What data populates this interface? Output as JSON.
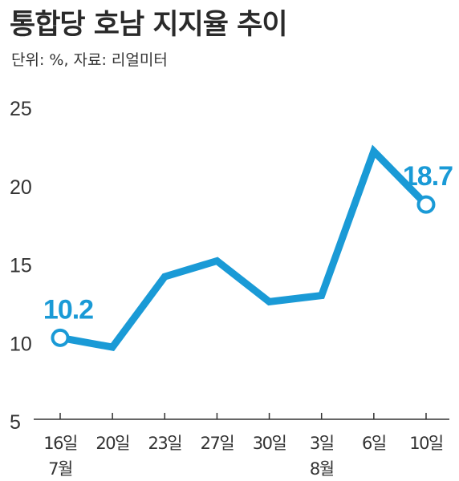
{
  "header": {
    "title": "통합당 호남 지지율 추이",
    "subtitle": "단위: %, 자료: 리얼미터"
  },
  "colors": {
    "line": "#1a9ad6",
    "axis": "#333333",
    "text": "#333333"
  },
  "chart_data": {
    "type": "line",
    "title": "통합당 호남 지지율 추이",
    "subtitle": "단위: %, 자료: 리얼미터",
    "categories": [
      "16일",
      "20일",
      "23일",
      "27일",
      "30일",
      "3일",
      "6일",
      "10일"
    ],
    "month_labels": [
      {
        "label": "7월",
        "at_index": 0
      },
      {
        "label": "8월",
        "at_index": 5
      }
    ],
    "series": [
      {
        "values": [
          10.2,
          9.6,
          14.1,
          15.1,
          12.5,
          12.9,
          22.1,
          18.7
        ]
      }
    ],
    "data_labels": [
      {
        "index": 0,
        "text": "10.2"
      },
      {
        "index": 7,
        "text": "18.7"
      }
    ],
    "yticks": [
      5,
      10,
      15,
      20,
      25
    ],
    "ylim": [
      5,
      25
    ],
    "grid": false
  }
}
